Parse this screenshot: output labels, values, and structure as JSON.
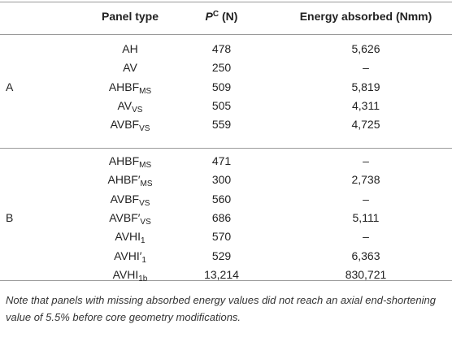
{
  "header": {
    "panel_type": "Panel type",
    "p_symbol": "P",
    "p_super": "C",
    "p_unit": " (N)",
    "energy": "Energy absorbed (Nmm)"
  },
  "groups": [
    {
      "label": "A",
      "rows": [
        {
          "base": "AH",
          "prime": "",
          "sub": "",
          "p": "478",
          "energy": "5,626"
        },
        {
          "base": "AV",
          "prime": "",
          "sub": "",
          "p": "250",
          "energy": "–"
        },
        {
          "base": "AHBF",
          "prime": "",
          "sub": "MS",
          "p": "509",
          "energy": "5,819"
        },
        {
          "base": "AV",
          "prime": "",
          "sub": "VS",
          "p": "505",
          "energy": "4,311"
        },
        {
          "base": "AVBF",
          "prime": "",
          "sub": "VS",
          "p": "559",
          "energy": "4,725"
        }
      ]
    },
    {
      "label": "B",
      "rows": [
        {
          "base": "AHBF",
          "prime": "",
          "sub": "MS",
          "p": "471",
          "energy": "–"
        },
        {
          "base": "AHBF",
          "prime": "′",
          "sub": "MS",
          "p": "300",
          "energy": "2,738"
        },
        {
          "base": "AVBF",
          "prime": "",
          "sub": "VS",
          "p": "560",
          "energy": "–"
        },
        {
          "base": "AVBF",
          "prime": "′",
          "sub": "VS",
          "p": "686",
          "energy": "5,111"
        },
        {
          "base": "AVHI",
          "prime": "",
          "sub": "1",
          "p": "570",
          "energy": "–"
        },
        {
          "base": "AVHI",
          "prime": "′",
          "sub": "1",
          "p": "529",
          "energy": "6,363"
        },
        {
          "base": "AVHI",
          "prime": "",
          "sub": "1b",
          "p": "13,214",
          "energy": "830,721"
        }
      ]
    }
  ],
  "note": "Note that panels with missing absorbed energy values did not reach an axial end-shortening value of 5.5% before core geometry modifications."
}
